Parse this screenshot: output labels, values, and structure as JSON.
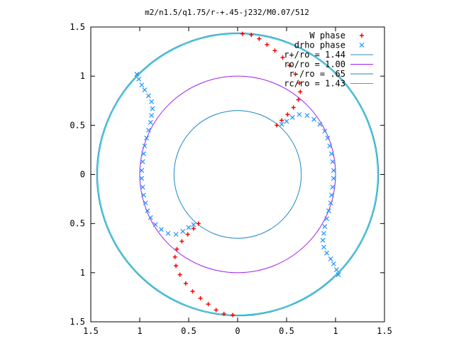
{
  "chart_data": {
    "type": "scatter",
    "title": "m2/n1.5/q1.75/r-+.45-j232/M0.07/512",
    "xlabel": "",
    "ylabel": "",
    "xlim": [
      -1.5,
      1.5
    ],
    "ylim": [
      -1.5,
      1.5
    ],
    "x_ticks": [
      -1.5,
      -1,
      -0.5,
      0,
      0.5,
      1,
      1.5
    ],
    "x_tick_labels": [
      "1.5",
      "1",
      "0.5",
      "0",
      "0.5",
      "1",
      "1.5"
    ],
    "y_ticks": [
      1.5,
      1,
      0.5,
      0,
      -0.5,
      -1,
      -1.5
    ],
    "y_tick_labels": [
      "1.5",
      "1",
      "0.5",
      "0",
      "0.5",
      "1",
      "1.5"
    ],
    "grid": false,
    "legend_position": "top-right",
    "series": [
      {
        "name": "W phase",
        "marker": "plus",
        "color": "#ff0000",
        "points": [
          [
            0.05,
            1.43
          ],
          [
            0.14,
            1.42
          ],
          [
            0.22,
            1.38
          ],
          [
            0.3,
            1.32
          ],
          [
            0.38,
            1.26
          ],
          [
            0.46,
            1.19
          ],
          [
            0.53,
            1.11
          ],
          [
            0.59,
            1.02
          ],
          [
            0.63,
            0.93
          ],
          [
            0.64,
            0.84
          ],
          [
            0.62,
            0.76
          ],
          [
            0.57,
            0.68
          ],
          [
            0.51,
            0.61
          ],
          [
            0.45,
            0.55
          ],
          [
            0.4,
            0.5
          ],
          [
            -0.05,
            -1.43
          ],
          [
            -0.14,
            -1.42
          ],
          [
            -0.22,
            -1.38
          ],
          [
            -0.3,
            -1.32
          ],
          [
            -0.38,
            -1.26
          ],
          [
            -0.46,
            -1.19
          ],
          [
            -0.53,
            -1.11
          ],
          [
            -0.59,
            -1.02
          ],
          [
            -0.63,
            -0.93
          ],
          [
            -0.64,
            -0.84
          ],
          [
            -0.62,
            -0.76
          ],
          [
            -0.57,
            -0.68
          ],
          [
            -0.51,
            -0.61
          ],
          [
            -0.45,
            -0.55
          ],
          [
            -0.4,
            -0.5
          ]
        ]
      },
      {
        "name": "drho phase",
        "marker": "cross",
        "color": "#1e90ff",
        "points": [
          [
            -1.03,
            1.02
          ],
          [
            -1.01,
            0.97
          ],
          [
            -0.98,
            0.91
          ],
          [
            -0.95,
            0.86
          ],
          [
            -0.91,
            0.8
          ],
          [
            -0.88,
            0.74
          ],
          [
            -0.87,
            0.67
          ],
          [
            -0.88,
            0.6
          ],
          [
            -0.89,
            0.53
          ],
          [
            -0.91,
            0.45
          ],
          [
            -0.93,
            0.37
          ],
          [
            -0.95,
            0.29
          ],
          [
            -0.96,
            0.21
          ],
          [
            -0.97,
            0.13
          ],
          [
            -0.98,
            0.04
          ],
          [
            -0.98,
            -0.04
          ],
          [
            -0.97,
            -0.13
          ],
          [
            -0.96,
            -0.21
          ],
          [
            -0.94,
            -0.29
          ],
          [
            -0.92,
            -0.37
          ],
          [
            -0.89,
            -0.44
          ],
          [
            -0.84,
            -0.51
          ],
          [
            -0.78,
            -0.56
          ],
          [
            -0.71,
            -0.6
          ],
          [
            -0.63,
            -0.61
          ],
          [
            -0.56,
            -0.58
          ],
          [
            -0.5,
            -0.54
          ],
          [
            -0.45,
            -0.51
          ],
          [
            1.03,
            -1.02
          ],
          [
            1.01,
            -0.97
          ],
          [
            0.98,
            -0.91
          ],
          [
            0.95,
            -0.86
          ],
          [
            0.91,
            -0.8
          ],
          [
            0.88,
            -0.74
          ],
          [
            0.87,
            -0.67
          ],
          [
            0.88,
            -0.6
          ],
          [
            0.89,
            -0.53
          ],
          [
            0.91,
            -0.45
          ],
          [
            0.93,
            -0.37
          ],
          [
            0.95,
            -0.29
          ],
          [
            0.96,
            -0.21
          ],
          [
            0.97,
            -0.13
          ],
          [
            0.98,
            -0.04
          ],
          [
            0.98,
            0.04
          ],
          [
            0.97,
            0.13
          ],
          [
            0.96,
            0.21
          ],
          [
            0.94,
            0.29
          ],
          [
            0.92,
            0.37
          ],
          [
            0.89,
            0.44
          ],
          [
            0.84,
            0.51
          ],
          [
            0.78,
            0.56
          ],
          [
            0.71,
            0.6
          ],
          [
            0.63,
            0.61
          ],
          [
            0.56,
            0.58
          ],
          [
            0.5,
            0.54
          ],
          [
            0.45,
            0.51
          ]
        ]
      },
      {
        "name": "r+/ro = 1.44",
        "type": "circle",
        "radius": 1.44,
        "color": "#2a8fbd"
      },
      {
        "name": "ro/ro = 1.00",
        "type": "circle",
        "radius": 1.0,
        "color": "#a020f0"
      },
      {
        "name": "r-/ro = .65",
        "type": "circle",
        "radius": 0.65,
        "color": "#1c86c7"
      },
      {
        "name": "rc/ro = 1.43",
        "type": "circle",
        "radius": 1.43,
        "color": "#00c0d0"
      }
    ]
  }
}
